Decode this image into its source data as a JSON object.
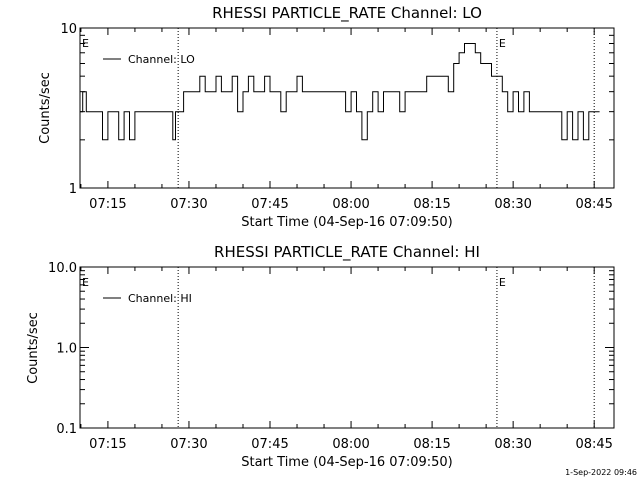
{
  "footer": {
    "timestamp": "1-Sep-2022 09:46"
  },
  "chart_data": [
    {
      "type": "line",
      "title": "RHESSI PARTICLE_RATE Channel: LO",
      "xlabel": "Start Time (04-Sep-16 07:09:50)",
      "ylabel": "Counts/sec",
      "y_scale": "log",
      "ylim": [
        1,
        10
      ],
      "y_ticks": [
        {
          "value": 1,
          "label": "1"
        },
        {
          "value": 10,
          "label": "10"
        }
      ],
      "xlim": [
        "07:09:50",
        "08:48:40"
      ],
      "x_ticks": [
        "07:15",
        "07:30",
        "07:45",
        "08:00",
        "08:15",
        "08:30",
        "08:45"
      ],
      "legend": {
        "entry": "Channel: LO",
        "placement": "top-left"
      },
      "event_lines": [
        "07:28:00",
        "08:27:00",
        "08:45:00"
      ],
      "event_markers": [
        {
          "label": "E",
          "time": "07:09:50"
        },
        {
          "label": "E",
          "time": "08:27:00"
        }
      ],
      "grid": false,
      "series": [
        {
          "x": [
            "07:09:50",
            "07:10:20",
            "07:11:00",
            "07:12:00",
            "07:13:00",
            "07:14:00",
            "07:15:00",
            "07:16:00",
            "07:17:00",
            "07:18:00",
            "07:19:00",
            "07:20:00",
            "07:21:00",
            "07:22:00",
            "07:23:00",
            "07:24:00",
            "07:25:00",
            "07:26:00",
            "07:27:00",
            "07:27:30",
            "07:28:00",
            "07:29:00",
            "07:30:00",
            "07:31:00",
            "07:32:00",
            "07:33:00",
            "07:34:00",
            "07:35:00",
            "07:36:00",
            "07:37:00",
            "07:38:00",
            "07:39:00",
            "07:40:00",
            "07:41:00",
            "07:42:00",
            "07:43:00",
            "07:44:00",
            "07:45:00",
            "07:46:00",
            "07:47:00",
            "07:48:00",
            "07:49:00",
            "07:50:00",
            "07:51:00",
            "07:52:00",
            "07:53:00",
            "07:54:00",
            "07:55:00",
            "07:56:00",
            "07:57:00",
            "07:58:00",
            "07:59:00",
            "08:00:00",
            "08:01:00",
            "08:02:00",
            "08:03:00",
            "08:04:00",
            "08:05:00",
            "08:06:00",
            "08:07:00",
            "08:08:00",
            "08:09:00",
            "08:10:00",
            "08:11:00",
            "08:12:00",
            "08:13:00",
            "08:14:00",
            "08:15:00",
            "08:16:00",
            "08:17:00",
            "08:18:00",
            "08:19:00",
            "08:20:00",
            "08:21:00",
            "08:22:00",
            "08:23:00",
            "08:24:00",
            "08:25:00",
            "08:26:00",
            "08:27:00",
            "08:28:00",
            "08:29:00",
            "08:30:00",
            "08:31:00",
            "08:32:00",
            "08:33:00",
            "08:34:00",
            "08:35:00",
            "08:36:00",
            "08:37:00",
            "08:38:00",
            "08:39:00",
            "08:40:00",
            "08:41:00",
            "08:42:00",
            "08:43:00",
            "08:44:00",
            "08:45:00"
          ],
          "values": [
            3,
            4,
            3,
            3,
            3,
            2,
            3,
            3,
            2,
            3,
            2,
            3,
            3,
            3,
            3,
            3,
            3,
            3,
            2,
            3,
            3,
            4,
            4,
            4,
            5,
            4,
            4,
            5,
            4,
            4,
            5,
            3,
            4,
            5,
            4,
            4,
            5,
            4,
            4,
            3,
            4,
            4,
            5,
            4,
            4,
            4,
            4,
            4,
            4,
            4,
            4,
            3,
            4,
            3,
            2,
            3,
            4,
            3,
            4,
            4,
            4,
            3,
            4,
            4,
            4,
            4,
            5,
            5,
            5,
            5,
            4,
            6,
            7,
            8,
            8,
            7,
            6,
            6,
            5,
            5,
            4,
            3,
            4,
            3,
            4,
            3,
            3,
            3,
            3,
            3,
            3,
            2,
            3,
            2,
            3,
            2,
            3,
            3
          ]
        }
      ]
    },
    {
      "type": "line",
      "title": "RHESSI PARTICLE_RATE Channel: HI",
      "xlabel": "Start Time (04-Sep-16 07:09:50)",
      "ylabel": "Counts/sec",
      "y_scale": "log",
      "ylim": [
        0.1,
        10
      ],
      "y_ticks": [
        {
          "value": 0.1,
          "label": "0.1"
        },
        {
          "value": 1,
          "label": "1.0"
        },
        {
          "value": 10,
          "label": "10.0"
        }
      ],
      "xlim": [
        "07:09:50",
        "08:48:40"
      ],
      "x_ticks": [
        "07:15",
        "07:30",
        "07:45",
        "08:00",
        "08:15",
        "08:30",
        "08:45"
      ],
      "legend": {
        "entry": "Channel: HI",
        "placement": "top-left"
      },
      "event_lines": [
        "07:28:00",
        "08:27:00",
        "08:45:00"
      ],
      "event_markers": [
        {
          "label": "E",
          "time": "07:09:50"
        },
        {
          "label": "E",
          "time": "08:27:00"
        }
      ],
      "grid": false,
      "series": []
    }
  ]
}
